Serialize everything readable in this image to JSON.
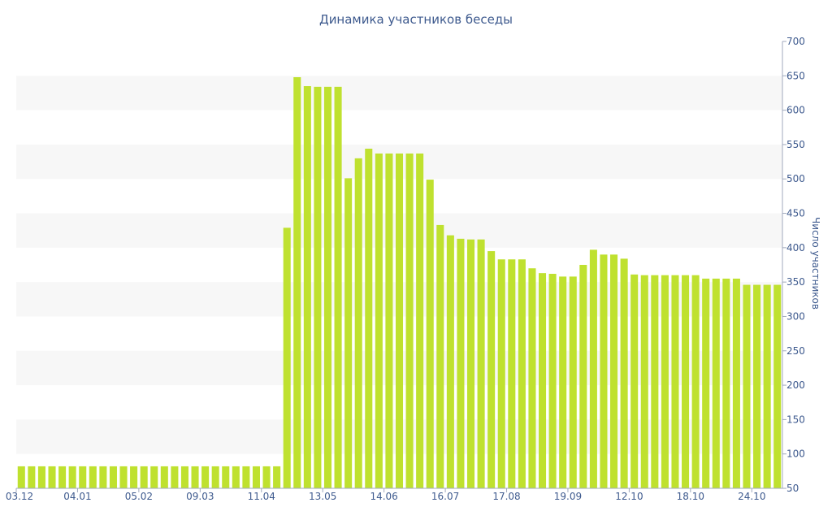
{
  "chart_data": {
    "type": "bar",
    "title": "Динамика участников беседы",
    "xlabel": "",
    "ylabel": "Число участников",
    "y_axis_side": "right",
    "ylim": [
      50,
      700
    ],
    "y_ticks": [
      50,
      100,
      150,
      200,
      250,
      300,
      350,
      400,
      450,
      500,
      550,
      600,
      650,
      700
    ],
    "x_tick_labels": [
      {
        "index": 0,
        "label": "03.12"
      },
      {
        "index": 6,
        "label": "04.01"
      },
      {
        "index": 12,
        "label": "05.02"
      },
      {
        "index": 18,
        "label": "09.03"
      },
      {
        "index": 24,
        "label": "11.04"
      },
      {
        "index": 30,
        "label": "13.05"
      },
      {
        "index": 36,
        "label": "14.06"
      },
      {
        "index": 42,
        "label": "16.07"
      },
      {
        "index": 48,
        "label": "17.08"
      },
      {
        "index": 54,
        "label": "19.09"
      },
      {
        "index": 60,
        "label": "12.10"
      },
      {
        "index": 66,
        "label": "18.10"
      },
      {
        "index": 72,
        "label": "24.10"
      }
    ],
    "values": [
      82,
      82,
      82,
      82,
      82,
      82,
      82,
      82,
      82,
      82,
      82,
      82,
      82,
      82,
      82,
      82,
      82,
      82,
      82,
      82,
      82,
      82,
      82,
      82,
      82,
      82,
      429,
      648,
      635,
      634,
      634,
      634,
      501,
      530,
      544,
      537,
      537,
      537,
      537,
      537,
      499,
      433,
      418,
      413,
      412,
      412,
      395,
      383,
      383,
      383,
      370,
      363,
      362,
      358,
      358,
      375,
      397,
      390,
      390,
      384,
      361,
      360,
      360,
      360,
      360,
      360,
      360,
      355,
      355,
      355,
      355,
      346,
      346,
      346,
      346
    ],
    "grid": "horizontal alternating bands",
    "colors": {
      "bar": "#bfe12f",
      "band": "#f7f7f7",
      "text": "#3e5a8e",
      "axis": "#a0a9bd"
    }
  }
}
